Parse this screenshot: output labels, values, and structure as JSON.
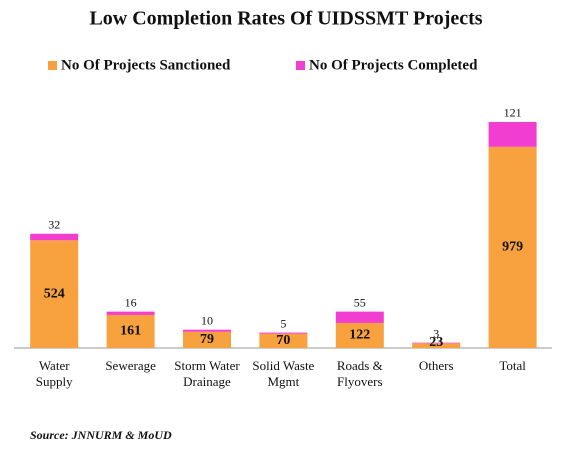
{
  "chart_data": {
    "type": "bar",
    "stacked": true,
    "title": "Low Completion Rates Of UIDSSMT Projects",
    "source": "Source: JNNURM & MoUD",
    "categories": [
      "Water Supply",
      "Sewerage",
      "Storm Water Drainage",
      "Solid Waste Mgmt",
      "Roads & Flyovers",
      "Others",
      "Total"
    ],
    "series": [
      {
        "name": "No Of Projects Sanctioned",
        "color": "#f7a13f",
        "values": [
          524,
          161,
          79,
          70,
          122,
          23,
          979
        ]
      },
      {
        "name": "No Of Projects Completed",
        "color": "#f23dd1",
        "values": [
          32,
          16,
          10,
          5,
          55,
          3,
          121
        ]
      }
    ]
  }
}
